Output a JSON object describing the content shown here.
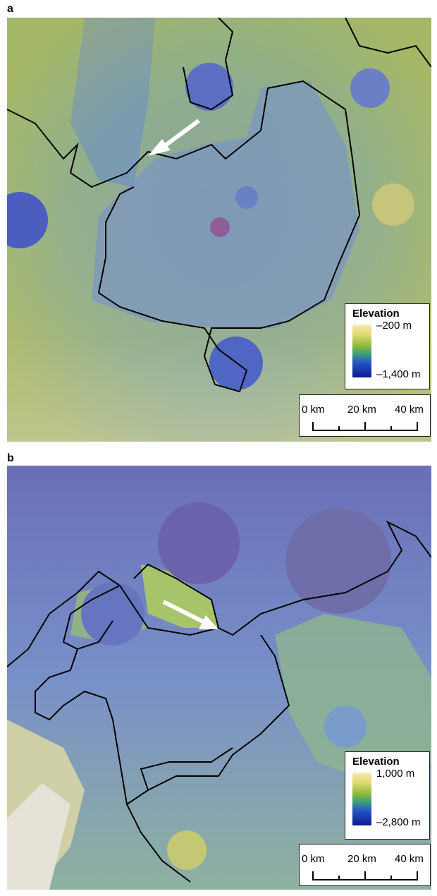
{
  "panels": [
    {
      "label": "a",
      "legend": {
        "title": "Elevation",
        "max": "–200 m",
        "min": "–1,400 m"
      },
      "scale_bar": {
        "ticks": [
          "0 km",
          "20 km",
          "40 km"
        ]
      },
      "colors": {
        "high": "#f6ecb0",
        "mid": "#8fbb3b",
        "low": "#101a8a"
      }
    },
    {
      "label": "b",
      "legend": {
        "title": "Elevation",
        "max": "1,000 m",
        "min": "–2,800 m"
      },
      "scale_bar": {
        "ticks": [
          "0 km",
          "20 km",
          "40 km"
        ]
      },
      "colors": {
        "high": "#f6ecb0",
        "mid": "#8fbb3b",
        "low": "#101a8a"
      }
    }
  ]
}
